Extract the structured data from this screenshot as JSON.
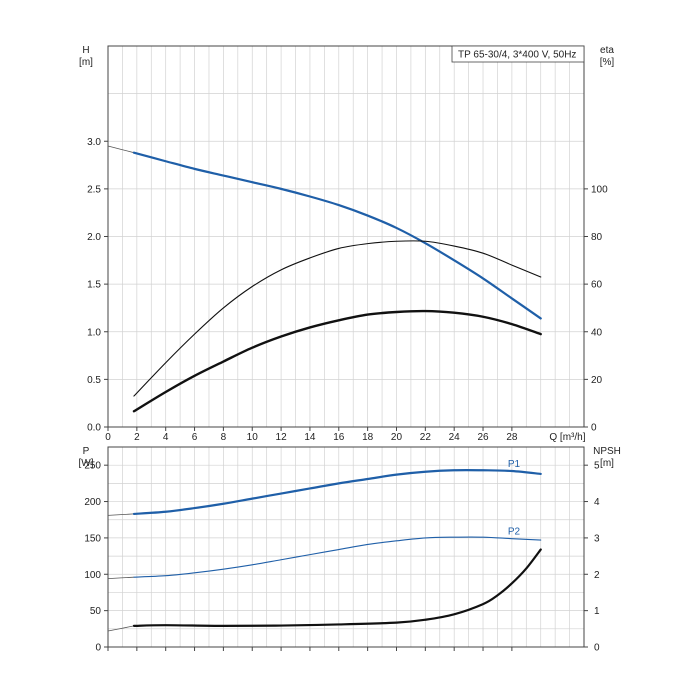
{
  "chart_data": [
    {
      "type": "line",
      "title": "TP 65-30/4, 3*400 V, 50Hz",
      "xlabel": "Q [m³/h]",
      "x_tick_labels": [
        "0",
        "2",
        "4",
        "6",
        "8",
        "10",
        "12",
        "14",
        "16",
        "18",
        "20",
        "22",
        "24",
        "26",
        "28"
      ],
      "xlim": [
        0,
        33
      ],
      "y_left": {
        "label_line1": "H",
        "label_line2": "[m]",
        "ylim": [
          0,
          4.0
        ],
        "tick_labels": [
          "0.0",
          "0.5",
          "1.0",
          "1.5",
          "2.0",
          "2.5",
          "3.0"
        ]
      },
      "y_right": {
        "label_line1": "eta",
        "label_line2": "[%]",
        "ylim": [
          0,
          160
        ],
        "tick_labels": [
          "0",
          "20",
          "40",
          "60",
          "80",
          "100"
        ]
      },
      "grid": true,
      "series": [
        {
          "axis": "left",
          "color": "#1f5fa8",
          "width": 2.2,
          "x": [
            1.8,
            4,
            6,
            8,
            10,
            12,
            14,
            16,
            18,
            20,
            22,
            24,
            26,
            28,
            30
          ],
          "y": [
            2.88,
            2.79,
            2.71,
            2.64,
            2.57,
            2.5,
            2.42,
            2.33,
            2.22,
            2.09,
            1.93,
            1.75,
            1.56,
            1.35,
            1.14
          ],
          "ext_x": [
            0,
            1.8
          ],
          "ext_y": [
            2.95,
            2.88
          ]
        },
        {
          "axis": "right",
          "color": "#111111",
          "width": 1.1,
          "x": [
            1.8,
            4,
            6,
            8,
            10,
            12,
            14,
            16,
            18,
            20,
            22,
            24,
            26,
            28,
            30
          ],
          "y": [
            13,
            27,
            39,
            50,
            59,
            66,
            71,
            75,
            77,
            78,
            78,
            76,
            73,
            68,
            63
          ]
        },
        {
          "axis": "right",
          "color": "#111111",
          "width": 2.4,
          "x": [
            1.8,
            4,
            6,
            8,
            10,
            12,
            14,
            16,
            18,
            20,
            22,
            24,
            26,
            28,
            30
          ],
          "y": [
            6.6,
            14.7,
            21.5,
            27.5,
            33.3,
            38.0,
            41.8,
            44.8,
            47.2,
            48.3,
            48.7,
            48.0,
            46.3,
            43.2,
            39.0
          ]
        }
      ]
    },
    {
      "type": "line",
      "y_left": {
        "label_line1": "P",
        "label_line2": "[W]",
        "ylim": [
          0,
          275
        ],
        "tick_labels": [
          "0",
          "50",
          "100",
          "150",
          "200",
          "250"
        ]
      },
      "y_right": {
        "label_line1": "NPSH",
        "label_line2": "[m]",
        "ylim": [
          0,
          5.5
        ],
        "tick_labels": [
          "0",
          "1",
          "2",
          "3",
          "4",
          "5"
        ]
      },
      "xlim": [
        0,
        33
      ],
      "grid": true,
      "series": [
        {
          "name": "P1",
          "axis": "left",
          "color": "#1f5fa8",
          "width": 2.2,
          "x": [
            1.8,
            4,
            6,
            8,
            10,
            12,
            14,
            16,
            18,
            20,
            22,
            24,
            26,
            28,
            30
          ],
          "y": [
            183,
            186,
            191,
            197,
            204,
            211,
            218,
            225,
            231,
            237,
            241,
            243,
            243,
            242,
            238
          ],
          "ext_x": [
            0,
            1.8
          ],
          "ext_y": [
            181,
            183
          ]
        },
        {
          "name": "P2",
          "axis": "left",
          "color": "#1f5fa8",
          "width": 1.1,
          "x": [
            1.8,
            4,
            6,
            8,
            10,
            12,
            14,
            16,
            18,
            20,
            22,
            24,
            26,
            28,
            30
          ],
          "y": [
            96,
            98,
            102,
            107,
            113,
            120,
            127,
            134,
            141,
            146,
            150,
            151,
            151,
            149,
            147
          ],
          "ext_x": [
            0,
            1.8
          ],
          "ext_y": [
            94,
            96
          ]
        },
        {
          "axis": "right",
          "color": "#111111",
          "width": 2.2,
          "x": [
            1.8,
            4,
            8,
            12,
            16,
            20,
            22,
            24,
            26,
            27,
            28,
            29,
            30
          ],
          "y": [
            0.58,
            0.6,
            0.58,
            0.59,
            0.62,
            0.67,
            0.75,
            0.9,
            1.18,
            1.42,
            1.75,
            2.16,
            2.68
          ],
          "ext_x": [
            0,
            1.8
          ],
          "ext_y": [
            0.44,
            0.58
          ]
        }
      ]
    }
  ]
}
